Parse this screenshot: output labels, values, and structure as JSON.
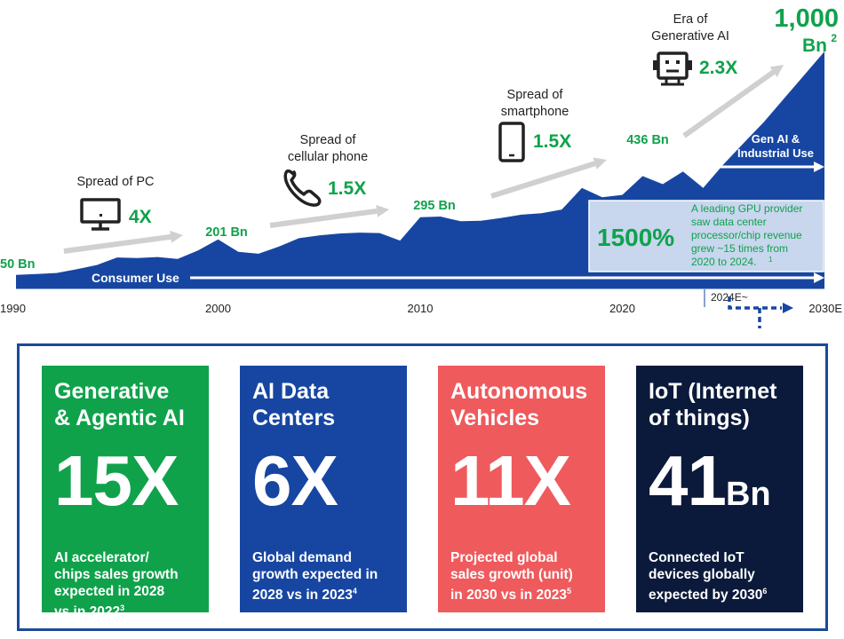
{
  "colors": {
    "area": "#1746a2",
    "green": "#0fa24b",
    "arrow": "#d0d0d0",
    "callout_bg": "#c8d6ee",
    "dark": "#222222"
  },
  "chart_data": {
    "type": "area",
    "x_ticks": [
      "1990",
      "2000",
      "2010",
      "2020",
      "2030E"
    ],
    "series": {
      "x": [
        1990,
        1991,
        1992,
        1993,
        1994,
        1995,
        1996,
        1997,
        1998,
        1999,
        2000,
        2001,
        2002,
        2003,
        2004,
        2005,
        2006,
        2007,
        2008,
        2009,
        2010,
        2011,
        2012,
        2013,
        2014,
        2015,
        2016,
        2017,
        2018,
        2019,
        2020,
        2021,
        2022,
        2023,
        2024,
        2025,
        2026,
        2027,
        2028,
        2029,
        2030
      ],
      "values": [
        50,
        54,
        58,
        74,
        92,
        124,
        122,
        126,
        118,
        154,
        201,
        148,
        140,
        170,
        206,
        218,
        226,
        230,
        228,
        196,
        295,
        298,
        278,
        280,
        292,
        306,
        312,
        328,
        420,
        380,
        390,
        470,
        436,
        490,
        420,
        520,
        610,
        700,
        800,
        900,
        1000
      ]
    },
    "point_labels": [
      {
        "x": 1990,
        "label": "50 Bn"
      },
      {
        "x": 2000,
        "label": "201 Bn"
      },
      {
        "x": 2010,
        "label": "295 Bn"
      },
      {
        "x": 2022,
        "label": "436 Bn"
      },
      {
        "x": 2030,
        "label": "1,000",
        "label2": "Bn",
        "sup": "2"
      }
    ],
    "eras": [
      {
        "label_lines": [
          "Spread of PC"
        ],
        "growth": "4X",
        "icon": "monitor-icon"
      },
      {
        "label_lines": [
          "Spread of",
          "cellular phone"
        ],
        "growth": "1.5X",
        "icon": "phone-handset-icon"
      },
      {
        "label_lines": [
          "Spread of",
          "smartphone"
        ],
        "growth": "1.5X",
        "icon": "smartphone-icon"
      },
      {
        "label_lines": [
          "Era of",
          "Generative AI"
        ],
        "growth": "2.3X",
        "icon": "robot-icon"
      }
    ],
    "phases": {
      "consumer": "Consumer Use",
      "gen_ai_lines": [
        "Gen AI &",
        "Industrial Use"
      ],
      "forecast_start": "2024E~",
      "forecast_end": "2030E"
    },
    "callout": {
      "big": "1500%",
      "lines": [
        "A leading GPU provider",
        "saw data center",
        "processor/chip revenue",
        "grew ~15 times from",
        "2020 to 2024."
      ],
      "sup": "1"
    }
  },
  "cards": [
    {
      "title_lines": [
        "Generative",
        "& Agentic AI"
      ],
      "big": "15X",
      "unit": "",
      "desc_lines": [
        "AI accelerator/",
        "chips sales growth",
        "expected in 2028",
        "vs in 2022"
      ],
      "sup": "3"
    },
    {
      "title_lines": [
        "AI Data",
        "Centers"
      ],
      "big": "6X",
      "unit": "",
      "desc_lines": [
        "Global demand",
        "growth expected in",
        "2028 vs in 2023"
      ],
      "sup": "4"
    },
    {
      "title_lines": [
        "Autonomous",
        "Vehicles"
      ],
      "big": "11X",
      "unit": "",
      "desc_lines": [
        "Projected global",
        "sales growth (unit)",
        "in 2030 vs in 2023"
      ],
      "sup": "5"
    },
    {
      "title_lines": [
        "IoT (Internet",
        "of things)"
      ],
      "big": "41",
      "unit": "Bn",
      "desc_lines": [
        "Connected IoT",
        "devices globally",
        "expected by 2030"
      ],
      "sup": "6"
    }
  ]
}
